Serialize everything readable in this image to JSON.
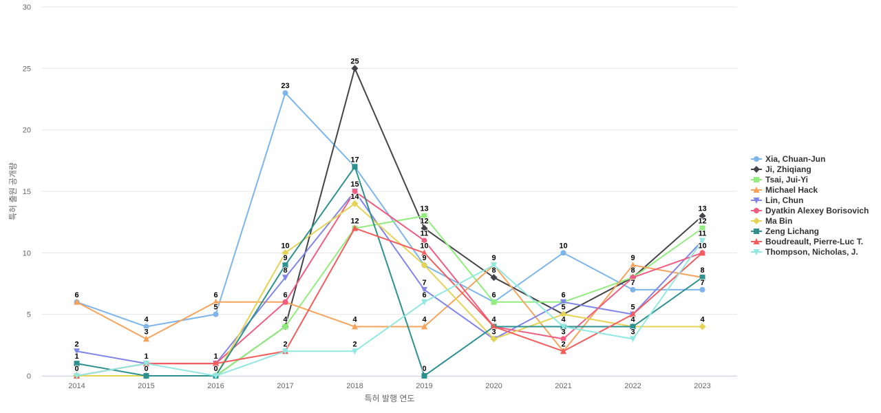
{
  "chart_data": {
    "type": "line",
    "title": "",
    "xlabel": "특허 발행 연도",
    "ylabel": "특허 출원 공개량",
    "ylim": [
      0,
      30
    ],
    "yticks": [
      "0",
      "5",
      "10",
      "15",
      "20",
      "25",
      "30"
    ],
    "categories": [
      "2014",
      "2015",
      "2016",
      "2017",
      "2018",
      "2019",
      "2020",
      "2021",
      "2022",
      "2023"
    ],
    "grid": true,
    "legend": "right",
    "series": [
      {
        "name": "Xia, Chuan-Jun",
        "color": "#7cb5ec",
        "marker": "circle",
        "values": [
          6,
          4,
          5,
          23,
          17,
          9,
          6,
          10,
          7,
          7
        ]
      },
      {
        "name": "Ji, Zhiqiang",
        "color": "#434348",
        "marker": "diamond",
        "values": [
          0,
          0,
          0,
          4,
          25,
          12,
          8,
          5,
          8,
          13
        ]
      },
      {
        "name": "Tsai, Jui-Yi",
        "color": "#90ed7d",
        "marker": "square",
        "values": [
          0,
          0,
          0,
          4,
          12,
          13,
          6,
          6,
          8,
          12
        ]
      },
      {
        "name": "Michael Hack",
        "color": "#f7a35c",
        "marker": "triangle",
        "values": [
          6,
          3,
          6,
          6,
          4,
          4,
          9,
          2,
          9,
          8
        ]
      },
      {
        "name": "Lin, Chun",
        "color": "#8085e9",
        "marker": "triangle-down",
        "values": [
          2,
          1,
          1,
          8,
          15,
          7,
          3,
          6,
          5,
          11
        ]
      },
      {
        "name": "Dyatkin Alexey Borisovich",
        "color": "#f15c80",
        "marker": "circle",
        "values": [
          0,
          1,
          1,
          6,
          15,
          11,
          4,
          3,
          8,
          10
        ]
      },
      {
        "name": "Ma Bin",
        "color": "#e4d354",
        "marker": "diamond",
        "values": [
          0,
          0,
          0,
          10,
          14,
          9,
          3,
          5,
          4,
          4
        ]
      },
      {
        "name": "Zeng Lichang",
        "color": "#2b908f",
        "marker": "square",
        "values": [
          1,
          0,
          0,
          9,
          17,
          0,
          4,
          4,
          4,
          8
        ]
      },
      {
        "name": "Boudreault, Pierre-Luc T.",
        "color": "#f45b5b",
        "marker": "triangle",
        "values": [
          0,
          1,
          1,
          2,
          12,
          10,
          4,
          2,
          5,
          10
        ]
      },
      {
        "name": "Thompson, Nicholas, J.",
        "color": "#91e8e1",
        "marker": "triangle-down",
        "values": [
          0,
          1,
          0,
          2,
          2,
          6,
          9,
          4,
          3,
          11
        ]
      }
    ],
    "data_labels": [
      {
        "x": "2014",
        "text": "6",
        "y": 6
      },
      {
        "x": "2014",
        "text": "2",
        "y": 2
      },
      {
        "x": "2014",
        "text": "1",
        "y": 1
      },
      {
        "x": "2014",
        "text": "0",
        "y": 0
      },
      {
        "x": "2015",
        "text": "4",
        "y": 4
      },
      {
        "x": "2015",
        "text": "3",
        "y": 3
      },
      {
        "x": "2015",
        "text": "1",
        "y": 1
      },
      {
        "x": "2015",
        "text": "0",
        "y": 0
      },
      {
        "x": "2016",
        "text": "6",
        "y": 6
      },
      {
        "x": "2016",
        "text": "5",
        "y": 5
      },
      {
        "x": "2016",
        "text": "1",
        "y": 1
      },
      {
        "x": "2016",
        "text": "0",
        "y": 0
      },
      {
        "x": "2017",
        "text": "23",
        "y": 23
      },
      {
        "x": "2017",
        "text": "10",
        "y": 10
      },
      {
        "x": "2017",
        "text": "9",
        "y": 9
      },
      {
        "x": "2017",
        "text": "8",
        "y": 8
      },
      {
        "x": "2017",
        "text": "6",
        "y": 6
      },
      {
        "x": "2017",
        "text": "4",
        "y": 4
      },
      {
        "x": "2017",
        "text": "2",
        "y": 2
      },
      {
        "x": "2018",
        "text": "25",
        "y": 25
      },
      {
        "x": "2018",
        "text": "17",
        "y": 17
      },
      {
        "x": "2018",
        "text": "15",
        "y": 15
      },
      {
        "x": "2018",
        "text": "14",
        "y": 14
      },
      {
        "x": "2018",
        "text": "12",
        "y": 12
      },
      {
        "x": "2018",
        "text": "4",
        "y": 4
      },
      {
        "x": "2018",
        "text": "2",
        "y": 2
      },
      {
        "x": "2019",
        "text": "13",
        "y": 13
      },
      {
        "x": "2019",
        "text": "12",
        "y": 12
      },
      {
        "x": "2019",
        "text": "11",
        "y": 11
      },
      {
        "x": "2019",
        "text": "10",
        "y": 10
      },
      {
        "x": "2019",
        "text": "9",
        "y": 9
      },
      {
        "x": "2019",
        "text": "7",
        "y": 7
      },
      {
        "x": "2019",
        "text": "6",
        "y": 6
      },
      {
        "x": "2019",
        "text": "4",
        "y": 4
      },
      {
        "x": "2019",
        "text": "0",
        "y": 0
      },
      {
        "x": "2020",
        "text": "9",
        "y": 9
      },
      {
        "x": "2020",
        "text": "8",
        "y": 8
      },
      {
        "x": "2020",
        "text": "6",
        "y": 6
      },
      {
        "x": "2020",
        "text": "4",
        "y": 4
      },
      {
        "x": "2020",
        "text": "3",
        "y": 3
      },
      {
        "x": "2021",
        "text": "10",
        "y": 10
      },
      {
        "x": "2021",
        "text": "6",
        "y": 6
      },
      {
        "x": "2021",
        "text": "5",
        "y": 5
      },
      {
        "x": "2021",
        "text": "4",
        "y": 4
      },
      {
        "x": "2021",
        "text": "3",
        "y": 3
      },
      {
        "x": "2021",
        "text": "2",
        "y": 2
      },
      {
        "x": "2022",
        "text": "9",
        "y": 9
      },
      {
        "x": "2022",
        "text": "8",
        "y": 8
      },
      {
        "x": "2022",
        "text": "7",
        "y": 7
      },
      {
        "x": "2022",
        "text": "5",
        "y": 5
      },
      {
        "x": "2022",
        "text": "4",
        "y": 4
      },
      {
        "x": "2022",
        "text": "3",
        "y": 3
      },
      {
        "x": "2023",
        "text": "13",
        "y": 13
      },
      {
        "x": "2023",
        "text": "12",
        "y": 12
      },
      {
        "x": "2023",
        "text": "11",
        "y": 11
      },
      {
        "x": "2023",
        "text": "10",
        "y": 10
      },
      {
        "x": "2023",
        "text": "8",
        "y": 8
      },
      {
        "x": "2023",
        "text": "7",
        "y": 7
      },
      {
        "x": "2023",
        "text": "4",
        "y": 4
      }
    ]
  }
}
